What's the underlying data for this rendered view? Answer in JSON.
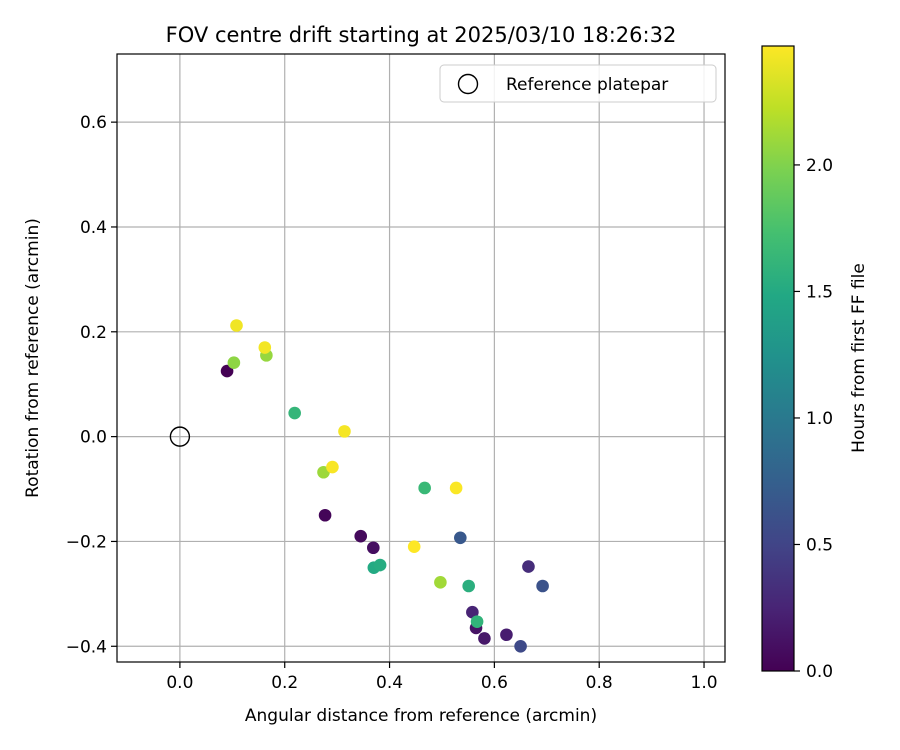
{
  "chart_data": {
    "type": "scatter",
    "title": "FOV centre drift starting at 2025/03/10 18:26:32",
    "xlabel": "Angular distance from reference (arcmin)",
    "ylabel": "Rotation from reference (arcmin)",
    "xlim": [
      -0.12,
      1.04
    ],
    "ylim": [
      -0.43,
      0.73
    ],
    "xticks": [
      0.0,
      0.2,
      0.4,
      0.6,
      0.8,
      1.0
    ],
    "xtick_labels": [
      "0.0",
      "0.2",
      "0.4",
      "0.6",
      "0.8",
      "1.0"
    ],
    "yticks": [
      -0.4,
      -0.2,
      0.0,
      0.2,
      0.4,
      0.6
    ],
    "ytick_labels": [
      "−0.4",
      "−0.2",
      "0.0",
      "0.2",
      "0.4",
      "0.6"
    ],
    "grid": true,
    "legend": {
      "position": "top-right",
      "entries": [
        {
          "label": "Reference platepar",
          "marker": "open-circle"
        }
      ]
    },
    "reference_point": {
      "x": 0.0,
      "y": 0.0
    },
    "colorbar": {
      "label": "Hours from first FF file",
      "range": [
        0.0,
        2.47
      ],
      "ticks": [
        0.0,
        0.5,
        1.0,
        1.5,
        2.0
      ],
      "tick_labels": [
        "0.0",
        "0.5",
        "1.0",
        "1.5",
        "2.0"
      ],
      "colormap": "viridis"
    },
    "points": [
      {
        "x": 0.09,
        "y": 0.125,
        "c": 0.0
      },
      {
        "x": 0.277,
        "y": -0.15,
        "c": 0.03
      },
      {
        "x": 0.345,
        "y": -0.19,
        "c": 0.06
      },
      {
        "x": 0.369,
        "y": -0.212,
        "c": 0.09
      },
      {
        "x": 0.565,
        "y": -0.365,
        "c": 0.12
      },
      {
        "x": 0.581,
        "y": -0.385,
        "c": 0.16
      },
      {
        "x": 0.623,
        "y": -0.378,
        "c": 0.2
      },
      {
        "x": 0.558,
        "y": -0.335,
        "c": 0.25
      },
      {
        "x": 0.665,
        "y": -0.248,
        "c": 0.32
      },
      {
        "x": 0.65,
        "y": -0.4,
        "c": 0.55
      },
      {
        "x": 0.692,
        "y": -0.285,
        "c": 0.62
      },
      {
        "x": 0.535,
        "y": -0.193,
        "c": 0.68
      },
      {
        "x": 0.37,
        "y": -0.25,
        "c": 1.5
      },
      {
        "x": 0.382,
        "y": -0.245,
        "c": 1.52
      },
      {
        "x": 0.551,
        "y": -0.285,
        "c": 1.55
      },
      {
        "x": 0.567,
        "y": -0.353,
        "c": 1.6
      },
      {
        "x": 0.219,
        "y": 0.045,
        "c": 1.62
      },
      {
        "x": 0.467,
        "y": -0.098,
        "c": 1.65
      },
      {
        "x": 0.103,
        "y": 0.141,
        "c": 2.05
      },
      {
        "x": 0.165,
        "y": 0.155,
        "c": 2.08
      },
      {
        "x": 0.274,
        "y": -0.068,
        "c": 2.1
      },
      {
        "x": 0.497,
        "y": -0.278,
        "c": 2.12
      },
      {
        "x": 0.108,
        "y": 0.212,
        "c": 2.42
      },
      {
        "x": 0.162,
        "y": 0.17,
        "c": 2.43
      },
      {
        "x": 0.314,
        "y": 0.01,
        "c": 2.44
      },
      {
        "x": 0.291,
        "y": -0.058,
        "c": 2.45
      },
      {
        "x": 0.527,
        "y": -0.098,
        "c": 2.46
      },
      {
        "x": 0.447,
        "y": -0.21,
        "c": 2.47
      }
    ]
  }
}
